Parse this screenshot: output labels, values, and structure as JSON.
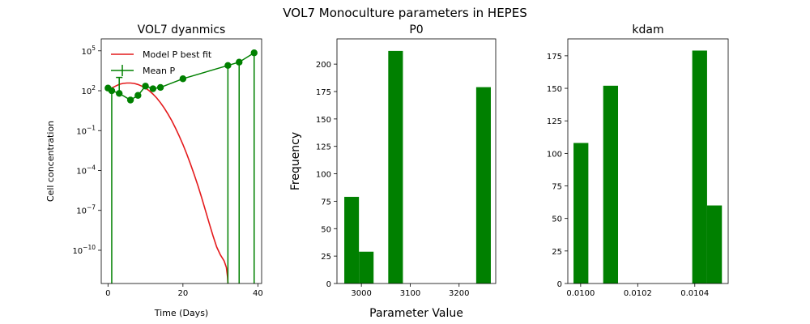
{
  "figure": {
    "suptitle": "VOL7 Monoculture parameters in HEPES"
  },
  "chart_data": [
    {
      "type": "line",
      "title": "VOL7 dyanmics",
      "xlabel": "Time (Days)",
      "ylabel": "Cell concentration",
      "xlim": [
        -1.8,
        41
      ],
      "ylim_log10": [
        -12.5,
        5.9
      ],
      "yscale": "log",
      "xticks": [
        0,
        20,
        40
      ],
      "yticks_log10": [
        -10,
        -7,
        -4,
        -1,
        2,
        5
      ],
      "legend": {
        "position": "top-left",
        "entries": [
          "Model P best fit",
          "Mean P"
        ]
      },
      "series": [
        {
          "name": "Model P best fit",
          "color": "#e41a1c",
          "x": [
            0,
            1,
            2,
            3,
            4,
            5,
            6,
            7,
            8,
            9,
            10,
            11,
            12,
            13,
            14,
            15,
            16,
            17,
            18,
            19,
            20,
            21,
            22,
            23,
            24,
            25,
            26,
            27,
            28,
            29,
            30,
            31,
            31.6,
            31.9,
            32.0
          ],
          "log10_y": [
            2.0,
            2.2,
            2.35,
            2.48,
            2.55,
            2.58,
            2.58,
            2.55,
            2.47,
            2.35,
            2.2,
            2.0,
            1.75,
            1.45,
            1.1,
            0.7,
            0.25,
            -0.25,
            -0.8,
            -1.4,
            -2.05,
            -2.75,
            -3.5,
            -4.3,
            -5.15,
            -6.05,
            -7.0,
            -7.95,
            -8.9,
            -9.75,
            -10.35,
            -10.8,
            -11.3,
            -12.0,
            -12.5
          ]
        },
        {
          "name": "Mean P",
          "color": "#008000",
          "x": [
            0,
            1,
            3,
            6,
            8,
            10,
            12,
            14,
            20,
            32,
            35,
            39
          ],
          "log10_y": [
            2.2,
            2.0,
            1.8,
            1.3,
            1.65,
            2.35,
            2.15,
            2.25,
            2.9,
            3.9,
            4.15,
            4.85
          ],
          "err_up_log10": [
            0,
            0,
            1.2,
            0,
            0,
            0,
            0,
            0,
            0,
            0,
            0,
            0
          ],
          "err_to_bottom": [
            false,
            true,
            false,
            false,
            false,
            false,
            false,
            false,
            false,
            true,
            true,
            true
          ]
        }
      ]
    },
    {
      "type": "bar",
      "title": "P0",
      "xlabel": "Parameter Value",
      "ylabel": "Frequency",
      "xlim": [
        2950,
        3275
      ],
      "ylim": [
        0,
        223
      ],
      "xticks": [
        3000,
        3100,
        3200
      ],
      "yticks": [
        0,
        25,
        50,
        75,
        100,
        125,
        150,
        175,
        200
      ],
      "color": "#008000",
      "bins": [
        {
          "x0": 2965,
          "x1": 2995,
          "value": 79
        },
        {
          "x0": 2995,
          "x1": 3025,
          "value": 29
        },
        {
          "x0": 3055,
          "x1": 3085,
          "value": 212
        },
        {
          "x0": 3235,
          "x1": 3265,
          "value": 179
        }
      ]
    },
    {
      "type": "bar",
      "title": "kdam",
      "xlabel": "",
      "ylabel": "",
      "xlim": [
        0.009955,
        0.010517
      ],
      "ylim": [
        0,
        188
      ],
      "xticks": [
        0.01,
        0.0102,
        0.0104
      ],
      "xtick_labels": [
        "0.0100",
        "0.0102",
        "0.0104"
      ],
      "yticks": [
        0,
        25,
        50,
        75,
        100,
        125,
        150,
        175
      ],
      "color": "#008000",
      "bins": [
        {
          "x0": 0.009975,
          "x1": 0.010027,
          "value": 108
        },
        {
          "x0": 0.010079,
          "x1": 0.010131,
          "value": 152
        },
        {
          "x0": 0.010391,
          "x1": 0.010443,
          "value": 179
        },
        {
          "x0": 0.010443,
          "x1": 0.010495,
          "value": 60
        }
      ]
    }
  ]
}
